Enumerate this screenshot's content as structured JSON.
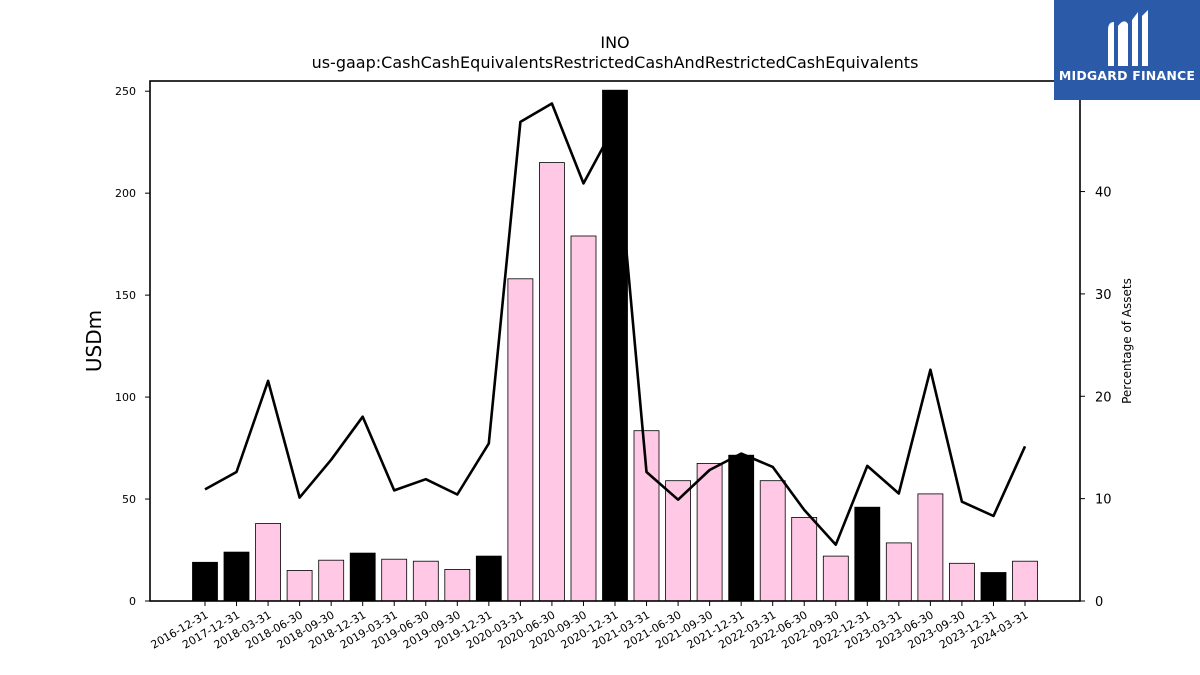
{
  "chart_data": {
    "type": "bar",
    "title": "INO",
    "subtitle": "us-gaap:CashCashEquivalentsRestrictedCashAndRestrictedCashEquivalents",
    "ylabel": "USDm",
    "y2label": "Percentage of Assets",
    "ylim": [
      0,
      255
    ],
    "y2lim": [
      0,
      50.8
    ],
    "yticks": [
      0,
      50,
      100,
      150,
      200,
      250
    ],
    "y2ticks": [
      0,
      10,
      20,
      30,
      40
    ],
    "categories": [
      "2016-12-31",
      "2017-12-31",
      "2018-03-31",
      "2018-06-30",
      "2018-09-30",
      "2018-12-31",
      "2019-03-31",
      "2019-06-30",
      "2019-09-30",
      "2019-12-31",
      "2020-03-31",
      "2020-06-30",
      "2020-09-30",
      "2020-12-31",
      "2021-03-31",
      "2021-06-30",
      "2021-09-30",
      "2021-12-31",
      "2022-03-31",
      "2022-06-30",
      "2022-09-30",
      "2022-12-31",
      "2023-03-31",
      "2023-06-30",
      "2023-09-30",
      "2023-12-31",
      "2024-03-31"
    ],
    "values": [
      19,
      24,
      38,
      15,
      20,
      23.5,
      20.5,
      19.5,
      15.5,
      22,
      158,
      215,
      179,
      250.5,
      83.5,
      59,
      67.5,
      71.5,
      59,
      41,
      22,
      46,
      28.5,
      52.5,
      18.5,
      14,
      19.5
    ],
    "fiscal_year_end": [
      true,
      true,
      false,
      false,
      false,
      true,
      false,
      false,
      false,
      true,
      false,
      false,
      false,
      true,
      false,
      false,
      false,
      true,
      false,
      false,
      false,
      true,
      false,
      false,
      false,
      true,
      false
    ],
    "series": [
      {
        "values": [
          10.9,
          12.6,
          21.5,
          10.1,
          13.8,
          18.0,
          10.8,
          11.9,
          10.4,
          15.4,
          46.8,
          48.6,
          40.8,
          46.5,
          12.6,
          9.9,
          12.8,
          14.4,
          13.1,
          8.9,
          5.5,
          13.2,
          10.5,
          22.6,
          9.7,
          8.3,
          15.1
        ]
      }
    ],
    "colors": {
      "fiscal_bar": "#000000",
      "quarter_bar": "#ffc9e6",
      "line": "#000000"
    },
    "grid": false,
    "legend": "none"
  },
  "logo": {
    "text": "MIDGARD FINANCE",
    "icon": "midgard-logo-icon",
    "color": "#2a5aa8"
  }
}
